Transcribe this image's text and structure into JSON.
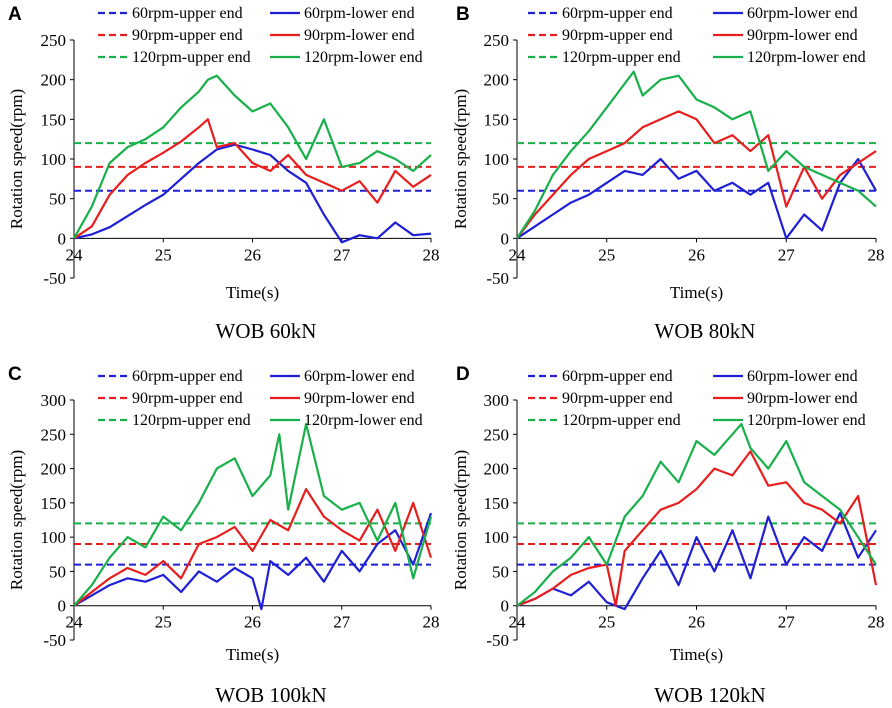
{
  "figure": {
    "ylabel": "Rotation speed(rpm)",
    "xlabel": "Time(s)",
    "legend": [
      {
        "label": "60rpm-upper end",
        "color": "#1f1fd6",
        "dash": true
      },
      {
        "label": "60rpm-lower end",
        "color": "#1f1fd6",
        "dash": false
      },
      {
        "label": "90rpm-upper end",
        "color": "#e81e1e",
        "dash": true
      },
      {
        "label": "90rpm-lower end",
        "color": "#e81e1e",
        "dash": false
      },
      {
        "label": "120rpm-upper end",
        "color": "#18b04a",
        "dash": true
      },
      {
        "label": "120rpm-lower end",
        "color": "#18b04a",
        "dash": false
      }
    ]
  },
  "chart_data": [
    {
      "panel": "A",
      "caption": "WOB 60kN",
      "type": "line",
      "title": "",
      "xlabel": "Time(s)",
      "ylabel": "Rotation speed(rpm)",
      "xlim": [
        24,
        28
      ],
      "ylim": [
        -50,
        250
      ],
      "xticks": [
        "24",
        "25",
        "26",
        "27",
        "28"
      ],
      "yticks": [
        "-50",
        "0",
        "50",
        "100",
        "150",
        "200",
        "250"
      ],
      "series": [
        {
          "name": "60rpm-upper end",
          "color": "#1f1fd6",
          "dashed": true,
          "x": [
            24,
            28
          ],
          "y": [
            60,
            60
          ]
        },
        {
          "name": "90rpm-upper end",
          "color": "#e81e1e",
          "dashed": true,
          "x": [
            24,
            28
          ],
          "y": [
            90,
            90
          ]
        },
        {
          "name": "120rpm-upper end",
          "color": "#18b04a",
          "dashed": true,
          "x": [
            24,
            28
          ],
          "y": [
            120,
            120
          ]
        },
        {
          "name": "60rpm-lower end",
          "color": "#1f1fd6",
          "dashed": false,
          "x": [
            24.0,
            24.2,
            24.4,
            24.6,
            24.8,
            25.0,
            25.2,
            25.4,
            25.6,
            25.8,
            26.0,
            26.2,
            26.4,
            26.6,
            26.8,
            27.0,
            27.2,
            27.4,
            27.6,
            27.8,
            28.0
          ],
          "y": [
            0,
            5,
            14,
            28,
            42,
            55,
            75,
            95,
            112,
            118,
            112,
            105,
            85,
            70,
            30,
            -5,
            4,
            0,
            20,
            4,
            6
          ]
        },
        {
          "name": "90rpm-lower end",
          "color": "#e81e1e",
          "dashed": false,
          "x": [
            24.0,
            24.2,
            24.4,
            24.6,
            24.8,
            25.0,
            25.2,
            25.4,
            25.5,
            25.6,
            25.8,
            26.0,
            26.2,
            26.4,
            26.6,
            26.8,
            27.0,
            27.2,
            27.4,
            27.6,
            27.8,
            28.0
          ],
          "y": [
            0,
            15,
            55,
            80,
            95,
            108,
            122,
            140,
            150,
            115,
            120,
            95,
            85,
            105,
            80,
            70,
            60,
            72,
            45,
            85,
            65,
            80
          ]
        },
        {
          "name": "120rpm-lower end",
          "color": "#18b04a",
          "dashed": false,
          "x": [
            24.0,
            24.2,
            24.4,
            24.6,
            24.8,
            25.0,
            25.2,
            25.4,
            25.5,
            25.6,
            25.8,
            26.0,
            26.2,
            26.4,
            26.6,
            26.8,
            27.0,
            27.2,
            27.4,
            27.6,
            27.8,
            28.0
          ],
          "y": [
            0,
            40,
            95,
            115,
            125,
            140,
            165,
            185,
            200,
            205,
            180,
            160,
            170,
            140,
            100,
            150,
            90,
            95,
            110,
            100,
            85,
            105
          ]
        }
      ]
    },
    {
      "panel": "B",
      "caption": "WOB 80kN",
      "type": "line",
      "title": "",
      "xlabel": "Time(s)",
      "ylabel": "Rotation speed(rpm)",
      "xlim": [
        24,
        28
      ],
      "ylim": [
        -50,
        250
      ],
      "xticks": [
        "24",
        "25",
        "26",
        "27",
        "28"
      ],
      "yticks": [
        "-50",
        "0",
        "50",
        "100",
        "150",
        "200",
        "250"
      ],
      "series": [
        {
          "name": "60rpm-upper end",
          "color": "#1f1fd6",
          "dashed": true,
          "x": [
            24,
            28
          ],
          "y": [
            60,
            60
          ]
        },
        {
          "name": "90rpm-upper end",
          "color": "#e81e1e",
          "dashed": true,
          "x": [
            24,
            28
          ],
          "y": [
            90,
            90
          ]
        },
        {
          "name": "120rpm-upper end",
          "color": "#18b04a",
          "dashed": true,
          "x": [
            24,
            28
          ],
          "y": [
            120,
            120
          ]
        },
        {
          "name": "60rpm-lower end",
          "color": "#1f1fd6",
          "dashed": false,
          "x": [
            24.0,
            24.2,
            24.4,
            24.6,
            24.8,
            25.0,
            25.2,
            25.4,
            25.6,
            25.8,
            26.0,
            26.2,
            26.4,
            26.6,
            26.8,
            27.0,
            27.2,
            27.4,
            27.6,
            27.8,
            28.0
          ],
          "y": [
            0,
            15,
            30,
            45,
            55,
            70,
            85,
            80,
            100,
            75,
            85,
            60,
            70,
            55,
            70,
            0,
            30,
            10,
            70,
            100,
            60
          ]
        },
        {
          "name": "90rpm-lower end",
          "color": "#e81e1e",
          "dashed": false,
          "x": [
            24.0,
            24.2,
            24.4,
            24.6,
            24.8,
            25.0,
            25.2,
            25.4,
            25.6,
            25.8,
            26.0,
            26.2,
            26.4,
            26.6,
            26.8,
            27.0,
            27.2,
            27.4,
            27.6,
            27.8,
            28.0
          ],
          "y": [
            0,
            30,
            55,
            80,
            100,
            110,
            120,
            140,
            150,
            160,
            150,
            120,
            130,
            110,
            130,
            40,
            90,
            50,
            80,
            95,
            110
          ]
        },
        {
          "name": "120rpm-lower end",
          "color": "#18b04a",
          "dashed": false,
          "x": [
            24.0,
            24.2,
            24.4,
            24.6,
            24.8,
            25.0,
            25.2,
            25.3,
            25.4,
            25.6,
            25.8,
            26.0,
            26.2,
            26.4,
            26.6,
            26.8,
            27.0,
            27.2,
            27.4,
            27.6,
            27.8,
            28.0
          ],
          "y": [
            0,
            35,
            80,
            110,
            135,
            165,
            195,
            210,
            180,
            200,
            205,
            175,
            165,
            150,
            160,
            85,
            110,
            90,
            80,
            70,
            60,
            40
          ]
        }
      ]
    },
    {
      "panel": "C",
      "caption": "WOB 100kN",
      "type": "line",
      "title": "",
      "xlabel": "Time(s)",
      "ylabel": "Rotation speed(rpm)",
      "xlim": [
        24,
        28
      ],
      "ylim": [
        -50,
        300
      ],
      "xticks": [
        "24",
        "25",
        "26",
        "27",
        "28"
      ],
      "yticks": [
        "-50",
        "0",
        "50",
        "100",
        "150",
        "200",
        "250",
        "300"
      ],
      "series": [
        {
          "name": "60rpm-upper end",
          "color": "#1f1fd6",
          "dashed": true,
          "x": [
            24,
            28
          ],
          "y": [
            60,
            60
          ]
        },
        {
          "name": "90rpm-upper end",
          "color": "#e81e1e",
          "dashed": true,
          "x": [
            24,
            28
          ],
          "y": [
            90,
            90
          ]
        },
        {
          "name": "120rpm-upper end",
          "color": "#18b04a",
          "dashed": true,
          "x": [
            24,
            28
          ],
          "y": [
            120,
            120
          ]
        },
        {
          "name": "60rpm-lower end",
          "color": "#1f1fd6",
          "dashed": false,
          "x": [
            24.0,
            24.2,
            24.4,
            24.6,
            24.8,
            25.0,
            25.2,
            25.4,
            25.6,
            25.8,
            26.0,
            26.1,
            26.2,
            26.4,
            26.6,
            26.8,
            27.0,
            27.2,
            27.4,
            27.6,
            27.8,
            28.0
          ],
          "y": [
            0,
            15,
            30,
            40,
            35,
            45,
            20,
            50,
            35,
            55,
            40,
            -5,
            65,
            45,
            70,
            35,
            80,
            50,
            90,
            110,
            60,
            135
          ]
        },
        {
          "name": "90rpm-lower end",
          "color": "#e81e1e",
          "dashed": false,
          "x": [
            24.0,
            24.2,
            24.4,
            24.6,
            24.8,
            25.0,
            25.2,
            25.4,
            25.6,
            25.8,
            26.0,
            26.2,
            26.4,
            26.6,
            26.8,
            27.0,
            27.2,
            27.4,
            27.6,
            27.8,
            28.0
          ],
          "y": [
            0,
            20,
            40,
            55,
            45,
            65,
            40,
            90,
            100,
            115,
            80,
            125,
            110,
            170,
            130,
            110,
            95,
            140,
            80,
            150,
            70
          ]
        },
        {
          "name": "120rpm-lower end",
          "color": "#18b04a",
          "dashed": false,
          "x": [
            24.0,
            24.2,
            24.4,
            24.6,
            24.8,
            25.0,
            25.2,
            25.4,
            25.6,
            25.8,
            26.0,
            26.2,
            26.3,
            26.4,
            26.6,
            26.8,
            27.0,
            27.2,
            27.4,
            27.6,
            27.8,
            28.0
          ],
          "y": [
            0,
            30,
            70,
            100,
            85,
            130,
            110,
            150,
            200,
            215,
            160,
            190,
            250,
            140,
            265,
            160,
            140,
            150,
            95,
            150,
            40,
            130
          ]
        }
      ]
    },
    {
      "panel": "D",
      "caption": "WOB 120kN",
      "type": "line",
      "title": "",
      "xlabel": "Time(s)",
      "ylabel": "Rotation speed(rpm)",
      "xlim": [
        24,
        28
      ],
      "ylim": [
        -50,
        300
      ],
      "xticks": [
        "24",
        "25",
        "26",
        "27",
        "28"
      ],
      "yticks": [
        "-50",
        "0",
        "50",
        "100",
        "150",
        "200",
        "250",
        "300"
      ],
      "series": [
        {
          "name": "60rpm-upper end",
          "color": "#1f1fd6",
          "dashed": true,
          "x": [
            24,
            28
          ],
          "y": [
            60,
            60
          ]
        },
        {
          "name": "90rpm-upper end",
          "color": "#e81e1e",
          "dashed": true,
          "x": [
            24,
            28
          ],
          "y": [
            90,
            90
          ]
        },
        {
          "name": "120rpm-upper end",
          "color": "#18b04a",
          "dashed": true,
          "x": [
            24,
            28
          ],
          "y": [
            120,
            120
          ]
        },
        {
          "name": "60rpm-lower end",
          "color": "#1f1fd6",
          "dashed": false,
          "x": [
            24.0,
            24.2,
            24.4,
            24.6,
            24.8,
            25.0,
            25.2,
            25.4,
            25.6,
            25.8,
            26.0,
            26.2,
            26.4,
            26.6,
            26.8,
            27.0,
            27.2,
            27.4,
            27.6,
            27.8,
            28.0
          ],
          "y": [
            0,
            10,
            25,
            15,
            35,
            5,
            -5,
            40,
            80,
            30,
            100,
            50,
            110,
            40,
            130,
            60,
            100,
            80,
            135,
            70,
            110
          ]
        },
        {
          "name": "90rpm-lower end",
          "color": "#e81e1e",
          "dashed": false,
          "x": [
            24.0,
            24.2,
            24.4,
            24.6,
            24.8,
            25.0,
            25.1,
            25.2,
            25.4,
            25.6,
            25.8,
            26.0,
            26.2,
            26.4,
            26.6,
            26.8,
            27.0,
            27.2,
            27.4,
            27.6,
            27.8,
            28.0
          ],
          "y": [
            0,
            10,
            25,
            45,
            55,
            60,
            0,
            80,
            110,
            140,
            150,
            170,
            200,
            190,
            225,
            175,
            180,
            150,
            140,
            120,
            160,
            30
          ]
        },
        {
          "name": "120rpm-lower end",
          "color": "#18b04a",
          "dashed": false,
          "x": [
            24.0,
            24.2,
            24.4,
            24.6,
            24.8,
            25.0,
            25.2,
            25.4,
            25.6,
            25.8,
            26.0,
            26.2,
            26.4,
            26.5,
            26.6,
            26.8,
            27.0,
            27.2,
            27.4,
            27.6,
            27.8,
            28.0
          ],
          "y": [
            0,
            20,
            50,
            70,
            100,
            60,
            130,
            160,
            210,
            180,
            240,
            220,
            250,
            265,
            230,
            200,
            240,
            180,
            160,
            140,
            100,
            60
          ]
        }
      ]
    }
  ]
}
